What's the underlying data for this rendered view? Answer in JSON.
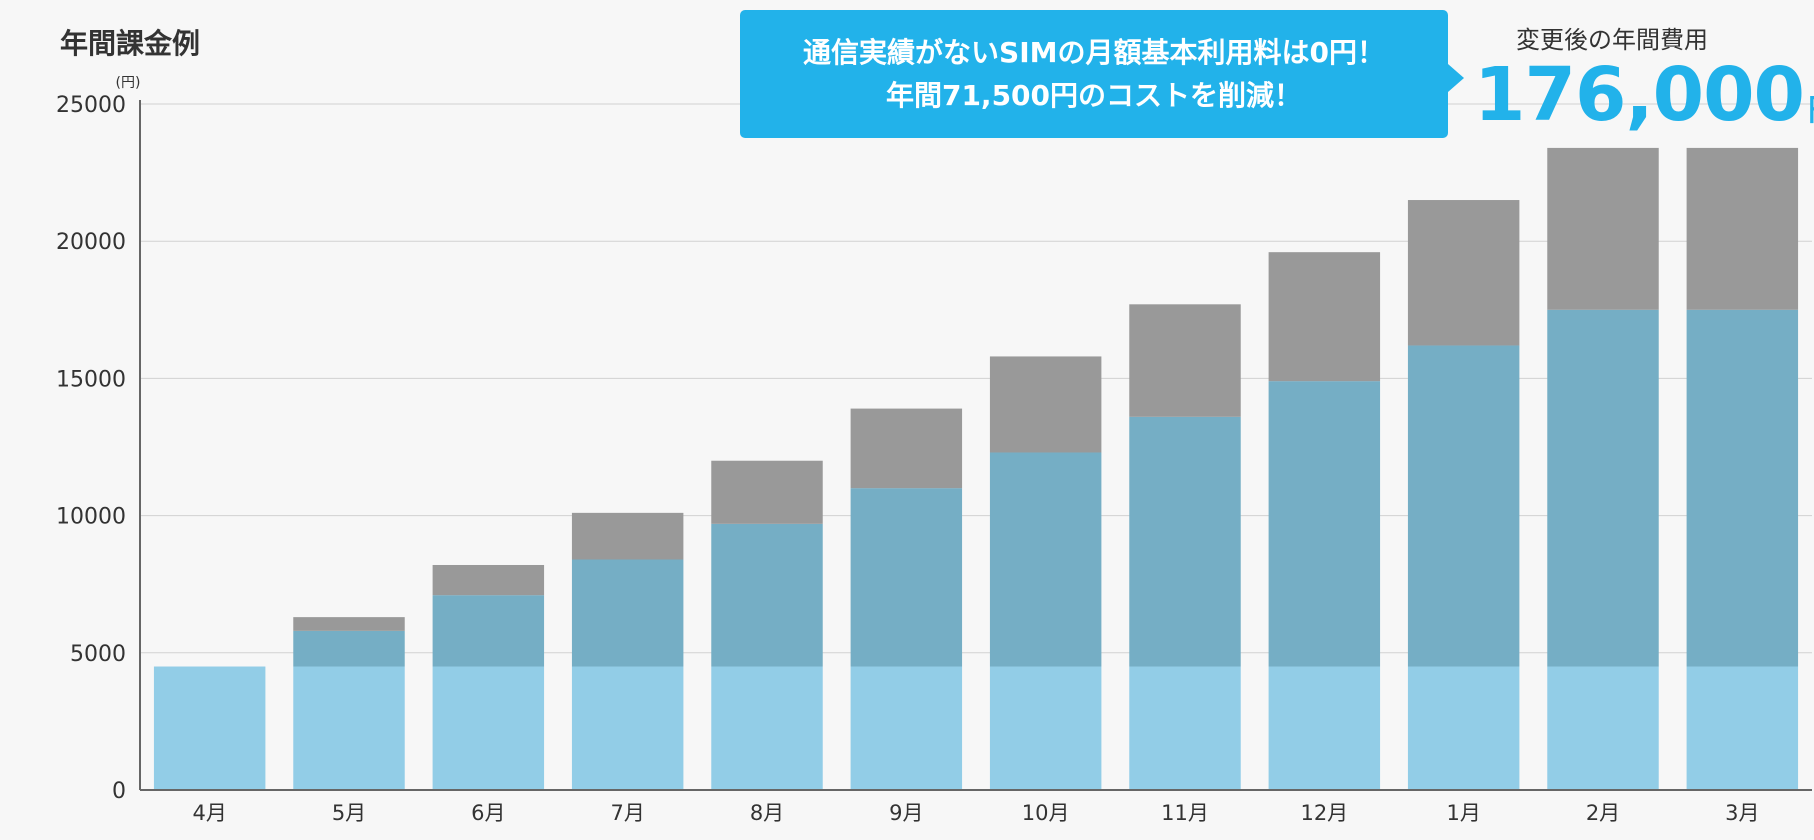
{
  "title": "年間課金例",
  "callout": {
    "line1": "通信実績がないSIMの月額基本利用料は0円！",
    "line2": "年間71,500円のコストを削減！"
  },
  "total": {
    "caption": "変更後の年間費用",
    "value": "176,000",
    "unit": "円"
  },
  "colors": {
    "light_blue": "#92cde7",
    "mid_blue": "#75aec5",
    "gray": "#999999",
    "accent": "#22b2ea"
  },
  "chart_data": {
    "type": "bar",
    "stacked": true,
    "categories": [
      "4月",
      "5月",
      "6月",
      "7月",
      "8月",
      "9月",
      "10月",
      "11月",
      "12月",
      "1月",
      "2月",
      "3月"
    ],
    "series": [
      {
        "color": "#92cde7",
        "values": [
          4500,
          4500,
          4500,
          4500,
          4500,
          4500,
          4500,
          4500,
          4500,
          4500,
          4500,
          4500
        ]
      },
      {
        "color": "#75aec5",
        "values": [
          0,
          1300,
          2600,
          3900,
          5200,
          6500,
          7800,
          9100,
          10400,
          11700,
          13000,
          13000
        ]
      },
      {
        "color": "#999999",
        "values": [
          0,
          500,
          1100,
          1700,
          2300,
          2900,
          3500,
          4100,
          4700,
          5300,
          5900,
          5900
        ]
      }
    ],
    "yunit": "(円)",
    "ylim": [
      0,
      25000
    ],
    "yticks": [
      0,
      5000,
      10000,
      15000,
      20000,
      25000
    ],
    "grid": true
  }
}
